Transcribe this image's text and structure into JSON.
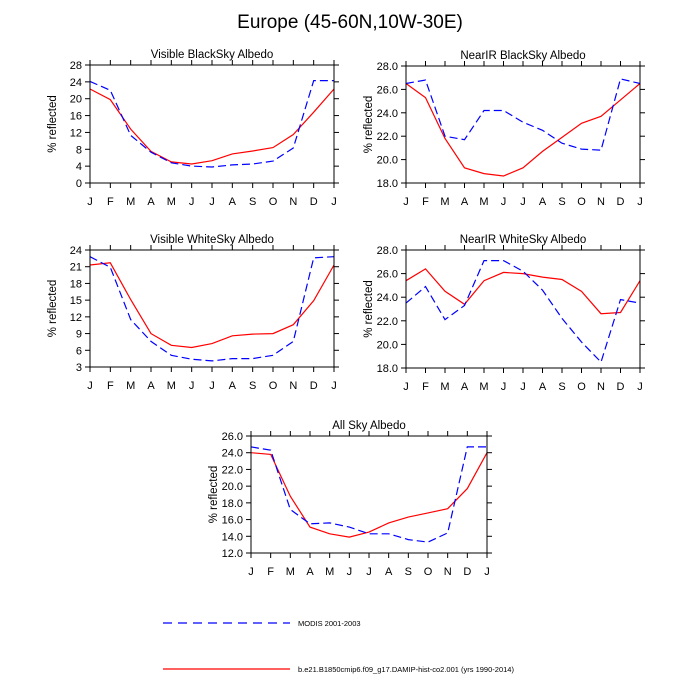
{
  "title": "Europe (45-60N,10W-30E)",
  "colors": {
    "model": "#ff0000",
    "modis": "#0000ff"
  },
  "legend": {
    "modis": "MODIS 2001-2003",
    "model": "b.e21.B1850cmip6.f09_g17.DAMIP-hist-co2.001 (yrs 1990-2014)"
  },
  "chart_data": [
    {
      "type": "line",
      "title": "Visible BlackSky Albedo",
      "ylabel": "% reflected",
      "categories": [
        "J",
        "F",
        "M",
        "A",
        "M",
        "J",
        "J",
        "A",
        "S",
        "O",
        "N",
        "D",
        "J"
      ],
      "ylim": [
        0,
        28
      ],
      "yticks": [
        0,
        4,
        8,
        12,
        16,
        20,
        24,
        28
      ],
      "ytick_labels": [
        "0",
        "4",
        "8",
        "12",
        "16",
        "20",
        "24",
        "28"
      ],
      "series": [
        {
          "name": "model",
          "style": "solid",
          "color": "#ff0000",
          "values": [
            22.3,
            19.8,
            12.8,
            7.5,
            5.0,
            4.5,
            5.3,
            6.9,
            7.6,
            8.4,
            11.5,
            16.8,
            22.3
          ]
        },
        {
          "name": "modis",
          "style": "dashed",
          "color": "#0000ff",
          "values": [
            24.1,
            22.0,
            11.3,
            7.3,
            4.8,
            4.0,
            3.8,
            4.3,
            4.5,
            5.2,
            8.3,
            24.3,
            24.3
          ]
        }
      ]
    },
    {
      "type": "line",
      "title": "NearIR BlackSky Albedo",
      "ylabel": "% reflected",
      "categories": [
        "J",
        "F",
        "M",
        "A",
        "M",
        "J",
        "J",
        "A",
        "S",
        "O",
        "N",
        "D",
        "J"
      ],
      "ylim": [
        18,
        28
      ],
      "yticks": [
        18,
        20,
        22,
        24,
        26,
        28
      ],
      "ytick_labels": [
        "18.0",
        "20.0",
        "22.0",
        "24.0",
        "26.0",
        "28.0"
      ],
      "series": [
        {
          "name": "model",
          "style": "solid",
          "color": "#ff0000",
          "values": [
            26.5,
            25.3,
            21.8,
            19.3,
            18.8,
            18.6,
            19.3,
            20.7,
            21.9,
            23.1,
            23.7,
            25.1,
            26.5
          ]
        },
        {
          "name": "modis",
          "style": "dashed",
          "color": "#0000ff",
          "values": [
            26.5,
            26.8,
            22.0,
            21.7,
            24.2,
            24.2,
            23.2,
            22.5,
            21.4,
            20.9,
            20.8,
            26.9,
            26.5
          ]
        }
      ]
    },
    {
      "type": "line",
      "title": "Visible WhiteSky Albedo",
      "ylabel": "% reflected",
      "categories": [
        "J",
        "F",
        "M",
        "A",
        "M",
        "J",
        "J",
        "A",
        "S",
        "O",
        "N",
        "D",
        "J"
      ],
      "ylim": [
        3,
        24
      ],
      "yticks": [
        3,
        6,
        9,
        12,
        15,
        18,
        21,
        24
      ],
      "ytick_labels": [
        "3",
        "6",
        "9",
        "12",
        "15",
        "18",
        "21",
        "24"
      ],
      "series": [
        {
          "name": "model",
          "style": "solid",
          "color": "#ff0000",
          "values": [
            21.3,
            21.7,
            15.1,
            9.0,
            6.9,
            6.5,
            7.2,
            8.6,
            8.9,
            9.0,
            10.6,
            14.9,
            21.3
          ]
        },
        {
          "name": "modis",
          "style": "dashed",
          "color": "#0000ff",
          "values": [
            22.8,
            20.9,
            11.5,
            7.6,
            5.1,
            4.4,
            4.1,
            4.5,
            4.5,
            5.1,
            7.6,
            22.6,
            22.8
          ]
        }
      ]
    },
    {
      "type": "line",
      "title": "NearIR WhiteSky Albedo",
      "ylabel": "% reflected",
      "categories": [
        "J",
        "F",
        "M",
        "A",
        "M",
        "J",
        "J",
        "A",
        "S",
        "O",
        "N",
        "D",
        "J"
      ],
      "ylim": [
        18,
        28
      ],
      "yticks": [
        18,
        20,
        22,
        24,
        26,
        28
      ],
      "ytick_labels": [
        "18.0",
        "20.0",
        "22.0",
        "24.0",
        "26.0",
        "28.0"
      ],
      "series": [
        {
          "name": "model",
          "style": "solid",
          "color": "#ff0000",
          "values": [
            25.4,
            26.4,
            24.5,
            23.4,
            25.4,
            26.1,
            26.0,
            25.7,
            25.5,
            24.5,
            22.6,
            22.7,
            25.4
          ]
        },
        {
          "name": "modis",
          "style": "dashed",
          "color": "#0000ff",
          "values": [
            23.5,
            24.9,
            22.1,
            23.3,
            27.1,
            27.1,
            26.2,
            24.6,
            22.2,
            20.2,
            18.5,
            23.8,
            23.5
          ]
        }
      ]
    },
    {
      "type": "line",
      "title": "All Sky Albedo",
      "ylabel": "% reflected",
      "categories": [
        "J",
        "F",
        "M",
        "A",
        "M",
        "J",
        "J",
        "A",
        "S",
        "O",
        "N",
        "D",
        "J"
      ],
      "ylim": [
        12,
        26
      ],
      "yticks": [
        12,
        14,
        16,
        18,
        20,
        22,
        24,
        26
      ],
      "ytick_labels": [
        "12.0",
        "14.0",
        "16.0",
        "18.0",
        "20.0",
        "22.0",
        "24.0",
        "26.0"
      ],
      "series": [
        {
          "name": "model",
          "style": "solid",
          "color": "#ff0000",
          "values": [
            24.0,
            23.8,
            18.8,
            15.1,
            14.3,
            13.9,
            14.5,
            15.6,
            16.3,
            16.8,
            17.3,
            19.7,
            24.0
          ]
        },
        {
          "name": "modis",
          "style": "dashed",
          "color": "#0000ff",
          "values": [
            24.7,
            24.3,
            17.2,
            15.5,
            15.6,
            15.1,
            14.3,
            14.3,
            13.6,
            13.3,
            14.4,
            24.7,
            24.7
          ]
        }
      ]
    }
  ]
}
